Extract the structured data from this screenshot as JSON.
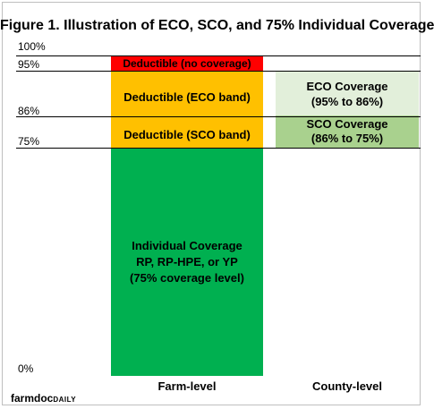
{
  "chart_data": {
    "type": "bar",
    "title": "Figure 1. Illustration of ECO, SCO, and 75% Individual Coverage",
    "y_ticks": [
      "100%",
      "95%",
      "86%",
      "75%",
      "0%"
    ],
    "ylim": [
      0,
      100
    ],
    "categories": [
      "Farm-level",
      "County-level"
    ],
    "farm_level": [
      {
        "label": "Individual Coverage RP, RP-HPE, or YP (75% coverage level)",
        "from": 0,
        "to": 75,
        "color": "#00b050"
      },
      {
        "label": "Deductible (SCO band)",
        "from": 75,
        "to": 86,
        "color": "#ffc000"
      },
      {
        "label": "Deductible (ECO band)",
        "from": 86,
        "to": 95,
        "color": "#ffc000"
      },
      {
        "label": "Deductible (no coverage)",
        "from": 95,
        "to": 100,
        "color": "#ff0000"
      }
    ],
    "county_level": [
      {
        "label": "SCO Coverage (86% to 75%)",
        "from": 75,
        "to": 86,
        "color": "#a9d18e"
      },
      {
        "label": "ECO Coverage (95% to 86%)",
        "from": 86,
        "to": 95,
        "color": "#e2efda"
      }
    ]
  },
  "footer": {
    "logo_part1": "farmdoc",
    "logo_part2": "DAILY"
  }
}
